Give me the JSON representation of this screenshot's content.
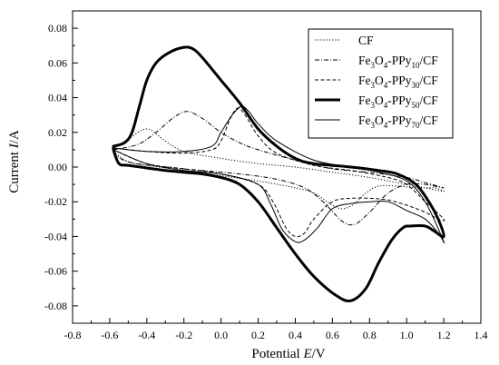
{
  "chart_data": {
    "type": "line",
    "xlabel": {
      "prefix": "Potential ",
      "symbol": "E",
      "unit": "/V"
    },
    "ylabel": {
      "prefix": "Current ",
      "symbol": "I",
      "unit": "/A"
    },
    "xlim": [
      -0.8,
      1.4
    ],
    "ylim": [
      -0.09,
      0.09
    ],
    "xticks": [
      -0.8,
      -0.6,
      -0.4,
      -0.2,
      0.0,
      0.2,
      0.4,
      0.6,
      0.8,
      1.0,
      1.2,
      1.4
    ],
    "xtick_labels": [
      "-0.8",
      "-0.6",
      "-0.4",
      "-0.2",
      "0.0",
      "0.2",
      "0.4",
      "0.6",
      "0.8",
      "1.0",
      "1.2",
      "1.4"
    ],
    "yticks": [
      -0.08,
      -0.06,
      -0.04,
      -0.02,
      0.0,
      0.02,
      0.04,
      0.06,
      0.08
    ],
    "ytick_labels": [
      "-0.08",
      "-0.06",
      "-0.04",
      "-0.02",
      "0.00",
      "0.02",
      "0.04",
      "0.06",
      "0.08"
    ],
    "grid": false,
    "legend_position": "top-right",
    "series": [
      {
        "name": "CF",
        "legend": [
          [
            "",
            "CF"
          ]
        ],
        "style": "dotted",
        "width": 1,
        "points": [
          [
            -0.58,
            0.011
          ],
          [
            -0.5,
            0.016
          ],
          [
            -0.4,
            0.022
          ],
          [
            -0.3,
            0.015
          ],
          [
            -0.2,
            0.009
          ],
          [
            0.0,
            0.005
          ],
          [
            0.2,
            0.002
          ],
          [
            0.4,
            0.0
          ],
          [
            0.6,
            -0.003
          ],
          [
            0.8,
            -0.006
          ],
          [
            1.0,
            -0.01
          ],
          [
            1.1,
            -0.012
          ],
          [
            1.2,
            -0.014
          ],
          [
            1.15,
            -0.012
          ],
          [
            1.05,
            -0.012
          ],
          [
            0.95,
            -0.011
          ],
          [
            0.85,
            -0.011
          ],
          [
            0.78,
            -0.015
          ],
          [
            0.72,
            -0.021
          ],
          [
            0.66,
            -0.024
          ],
          [
            0.6,
            -0.022
          ],
          [
            0.5,
            -0.015
          ],
          [
            0.4,
            -0.012
          ],
          [
            0.2,
            -0.008
          ],
          [
            0.0,
            -0.005
          ],
          [
            -0.2,
            -0.002
          ],
          [
            -0.4,
            0.001
          ],
          [
            -0.5,
            0.003
          ],
          [
            -0.58,
            0.009
          ]
        ]
      },
      {
        "name": "Fe3O4-PPy10/CF",
        "legend": [
          [
            "",
            "Fe"
          ],
          [
            "sub",
            "3"
          ],
          [
            "",
            "O"
          ],
          [
            "sub",
            "4"
          ],
          [
            "",
            "-PPy"
          ],
          [
            "sub",
            "10"
          ],
          [
            "",
            "/CF"
          ]
        ],
        "style": "dashdot",
        "width": 1,
        "points": [
          [
            -0.58,
            0.01
          ],
          [
            -0.45,
            0.013
          ],
          [
            -0.35,
            0.02
          ],
          [
            -0.25,
            0.029
          ],
          [
            -0.18,
            0.032
          ],
          [
            -0.1,
            0.028
          ],
          [
            0.0,
            0.02
          ],
          [
            0.1,
            0.014
          ],
          [
            0.2,
            0.01
          ],
          [
            0.4,
            0.004
          ],
          [
            0.6,
            -0.001
          ],
          [
            0.8,
            -0.003
          ],
          [
            1.0,
            -0.006
          ],
          [
            1.1,
            -0.009
          ],
          [
            1.2,
            -0.012
          ],
          [
            1.1,
            -0.01
          ],
          [
            1.0,
            -0.01
          ],
          [
            0.9,
            -0.015
          ],
          [
            0.8,
            -0.026
          ],
          [
            0.72,
            -0.033
          ],
          [
            0.65,
            -0.031
          ],
          [
            0.55,
            -0.02
          ],
          [
            0.45,
            -0.012
          ],
          [
            0.3,
            -0.007
          ],
          [
            0.1,
            -0.004
          ],
          [
            -0.1,
            -0.002
          ],
          [
            -0.3,
            0.0
          ],
          [
            -0.5,
            0.003
          ],
          [
            -0.58,
            0.008
          ]
        ]
      },
      {
        "name": "Fe3O4-PPy30/CF",
        "legend": [
          [
            "",
            "Fe"
          ],
          [
            "sub",
            "3"
          ],
          [
            "",
            "O"
          ],
          [
            "sub",
            "4"
          ],
          [
            "",
            "-PPy"
          ],
          [
            "sub",
            "30"
          ],
          [
            "",
            "/CF"
          ]
        ],
        "style": "dashed",
        "width": 1,
        "points": [
          [
            -0.58,
            0.011
          ],
          [
            -0.4,
            0.009
          ],
          [
            -0.2,
            0.008
          ],
          [
            -0.05,
            0.01
          ],
          [
            0.0,
            0.015
          ],
          [
            0.05,
            0.028
          ],
          [
            0.09,
            0.034
          ],
          [
            0.13,
            0.03
          ],
          [
            0.2,
            0.018
          ],
          [
            0.3,
            0.008
          ],
          [
            0.5,
            0.001
          ],
          [
            0.7,
            -0.002
          ],
          [
            0.9,
            -0.006
          ],
          [
            1.0,
            -0.01
          ],
          [
            1.1,
            -0.02
          ],
          [
            1.2,
            -0.03
          ],
          [
            1.17,
            -0.03
          ],
          [
            1.1,
            -0.026
          ],
          [
            1.0,
            -0.022
          ],
          [
            0.9,
            -0.019
          ],
          [
            0.8,
            -0.018
          ],
          [
            0.7,
            -0.018
          ],
          [
            0.6,
            -0.02
          ],
          [
            0.5,
            -0.03
          ],
          [
            0.45,
            -0.038
          ],
          [
            0.4,
            -0.04
          ],
          [
            0.35,
            -0.035
          ],
          [
            0.28,
            -0.02
          ],
          [
            0.2,
            -0.01
          ],
          [
            0.0,
            -0.004
          ],
          [
            -0.2,
            -0.001
          ],
          [
            -0.4,
            0.002
          ],
          [
            -0.58,
            0.01
          ]
        ]
      },
      {
        "name": "Fe3O4-PPy50/CF",
        "legend": [
          [
            "",
            "Fe"
          ],
          [
            "sub",
            "3"
          ],
          [
            "",
            "O"
          ],
          [
            "sub",
            "4"
          ],
          [
            "",
            "-PPy"
          ],
          [
            "sub",
            "50"
          ],
          [
            "",
            "/CF"
          ]
        ],
        "style": "solid",
        "width": 3,
        "points": [
          [
            -0.58,
            0.012
          ],
          [
            -0.52,
            0.014
          ],
          [
            -0.48,
            0.02
          ],
          [
            -0.44,
            0.035
          ],
          [
            -0.4,
            0.05
          ],
          [
            -0.35,
            0.06
          ],
          [
            -0.28,
            0.066
          ],
          [
            -0.2,
            0.069
          ],
          [
            -0.15,
            0.068
          ],
          [
            -0.1,
            0.063
          ],
          [
            0.0,
            0.05
          ],
          [
            0.1,
            0.037
          ],
          [
            0.2,
            0.022
          ],
          [
            0.3,
            0.012
          ],
          [
            0.4,
            0.005
          ],
          [
            0.5,
            0.002
          ],
          [
            0.7,
            0.0
          ],
          [
            0.85,
            -0.002
          ],
          [
            0.95,
            -0.004
          ],
          [
            1.05,
            -0.01
          ],
          [
            1.12,
            -0.02
          ],
          [
            1.17,
            -0.03
          ],
          [
            1.2,
            -0.04
          ],
          [
            1.15,
            -0.037
          ],
          [
            1.1,
            -0.034
          ],
          [
            1.02,
            -0.034
          ],
          [
            0.98,
            -0.035
          ],
          [
            0.92,
            -0.042
          ],
          [
            0.85,
            -0.055
          ],
          [
            0.78,
            -0.07
          ],
          [
            0.7,
            -0.077
          ],
          [
            0.62,
            -0.074
          ],
          [
            0.5,
            -0.063
          ],
          [
            0.4,
            -0.05
          ],
          [
            0.3,
            -0.035
          ],
          [
            0.2,
            -0.02
          ],
          [
            0.1,
            -0.01
          ],
          [
            0.0,
            -0.006
          ],
          [
            -0.1,
            -0.004
          ],
          [
            -0.2,
            -0.003
          ],
          [
            -0.3,
            -0.002
          ],
          [
            -0.4,
            -0.0005
          ],
          [
            -0.5,
            0.001
          ],
          [
            -0.55,
            0.002
          ],
          [
            -0.58,
            0.01
          ]
        ]
      },
      {
        "name": "Fe3O4-PPy70/CF",
        "legend": [
          [
            "",
            "Fe"
          ],
          [
            "sub",
            "3"
          ],
          [
            "",
            "O"
          ],
          [
            "sub",
            "4"
          ],
          [
            "",
            "-PPy"
          ],
          [
            "sub",
            "70"
          ],
          [
            "",
            "/CF"
          ]
        ],
        "style": "solid",
        "width": 1,
        "points": [
          [
            -0.58,
            0.011
          ],
          [
            -0.4,
            0.009
          ],
          [
            -0.2,
            0.009
          ],
          [
            -0.05,
            0.012
          ],
          [
            0.0,
            0.02
          ],
          [
            0.06,
            0.03
          ],
          [
            0.11,
            0.035
          ],
          [
            0.15,
            0.032
          ],
          [
            0.2,
            0.025
          ],
          [
            0.3,
            0.015
          ],
          [
            0.5,
            0.004
          ],
          [
            0.7,
            0.0
          ],
          [
            0.85,
            -0.003
          ],
          [
            1.0,
            -0.008
          ],
          [
            1.1,
            -0.02
          ],
          [
            1.2,
            -0.043
          ],
          [
            1.17,
            -0.038
          ],
          [
            1.1,
            -0.03
          ],
          [
            1.0,
            -0.025
          ],
          [
            0.9,
            -0.02
          ],
          [
            0.8,
            -0.02
          ],
          [
            0.7,
            -0.021
          ],
          [
            0.6,
            -0.024
          ],
          [
            0.52,
            -0.035
          ],
          [
            0.45,
            -0.042
          ],
          [
            0.4,
            -0.043
          ],
          [
            0.33,
            -0.036
          ],
          [
            0.27,
            -0.022
          ],
          [
            0.2,
            -0.01
          ],
          [
            0.0,
            -0.004
          ],
          [
            -0.2,
            -0.002
          ],
          [
            -0.4,
            0.002
          ],
          [
            -0.58,
            0.01
          ]
        ]
      }
    ]
  }
}
